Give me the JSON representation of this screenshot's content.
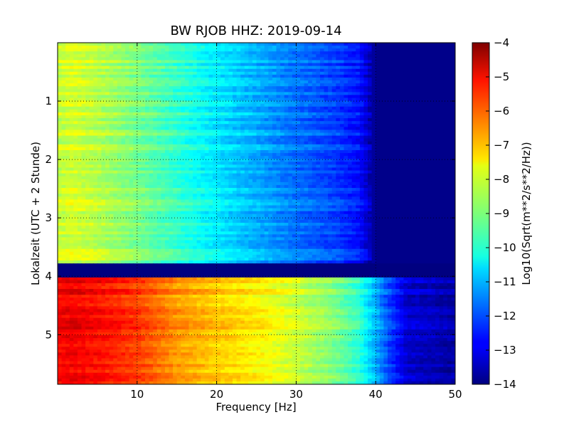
{
  "chart_data": {
    "type": "heatmap",
    "title": "BW RJOB HHZ: 2019-09-14",
    "xlabel": "Frequency [Hz]",
    "ylabel": "Lokalzeit (UTC + 2 Stunde)",
    "xlim": [
      0,
      50
    ],
    "ylim": [
      5.85,
      0
    ],
    "x_ticks": [
      10,
      20,
      30,
      40,
      50
    ],
    "y_ticks": [
      1,
      2,
      3,
      4,
      5
    ],
    "grid": true,
    "colormap": "jet",
    "colorbar": {
      "label": "Log10(Sqrt(m**2/s**2/Hz))",
      "range": [
        -14,
        -4
      ],
      "ticks": [
        -4,
        -5,
        -6,
        -7,
        -8,
        -9,
        -10,
        -11,
        -12,
        -13,
        -14
      ]
    },
    "segments": [
      {
        "name": "upper",
        "y_range": [
          0,
          3.78
        ],
        "profile_x": [
          0,
          2,
          5,
          10,
          15,
          20,
          25,
          30,
          35,
          38,
          39,
          40,
          50
        ],
        "profile_db": [
          -8.3,
          -8.1,
          -8.4,
          -9.0,
          -9.7,
          -10.4,
          -11.0,
          -11.6,
          -12.1,
          -12.6,
          -13.2,
          -13.9,
          -13.9
        ]
      },
      {
        "name": "data_gap",
        "y_range": [
          3.78,
          4.02
        ],
        "value": -14
      },
      {
        "name": "lower",
        "y_range": [
          4.02,
          5.85
        ],
        "profile_x": [
          0,
          2,
          5,
          10,
          15,
          20,
          25,
          30,
          35,
          38,
          40,
          42,
          44,
          50
        ],
        "profile_db": [
          -5.2,
          -5.1,
          -5.3,
          -5.8,
          -6.7,
          -7.2,
          -7.6,
          -8.2,
          -9.0,
          -9.8,
          -11.0,
          -12.2,
          -13.2,
          -13.6
        ]
      }
    ]
  }
}
